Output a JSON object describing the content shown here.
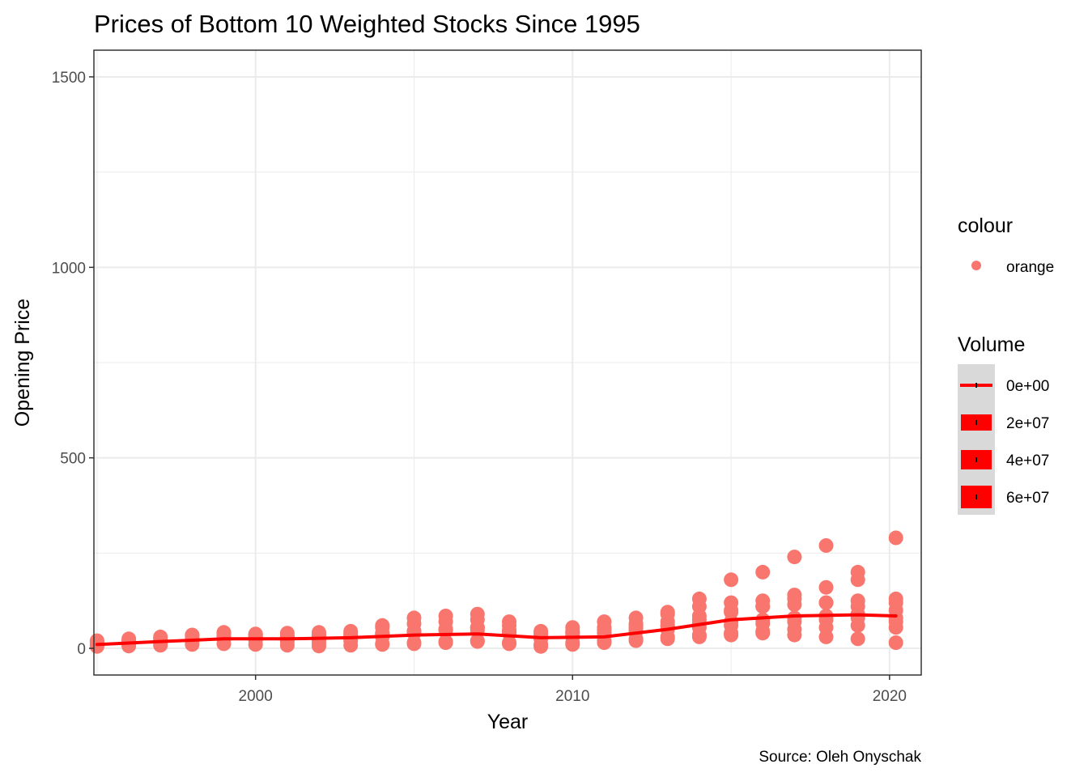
{
  "chart_data": {
    "type": "scatter",
    "title": "Prices of Bottom 10 Weighted Stocks Since 1995",
    "xlabel": "Year",
    "ylabel": "Opening Price",
    "caption": "Source: Oleh Onyschak",
    "xlim": [
      1994.9,
      2021.0
    ],
    "ylim": [
      -70,
      1570
    ],
    "x_ticks": [
      2000,
      2010,
      2020
    ],
    "x_tick_labels": [
      "2000",
      "2010",
      "2020"
    ],
    "y_ticks": [
      0,
      500,
      1000,
      1500
    ],
    "y_tick_labels": [
      "0",
      "500",
      "1000",
      "1500"
    ],
    "grid": true,
    "legend_position": "right",
    "colors": {
      "points": "#F8766D",
      "trend": "#FF0000",
      "grid": "#EBEBEB",
      "legend_key_bg": "#D9D9D9"
    },
    "legends": [
      {
        "title": "colour",
        "entries": [
          {
            "label": "orange",
            "shape": "point",
            "color": "#F8766D"
          }
        ]
      },
      {
        "title": "Volume",
        "entries": [
          {
            "label": "0e+00",
            "size": 1
          },
          {
            "label": "2e+07",
            "size": 2
          },
          {
            "label": "4e+07",
            "size": 3
          },
          {
            "label": "6e+07",
            "size": 4
          }
        ]
      }
    ],
    "series": [
      {
        "x": [
          1995.0,
          1996.0,
          1997.0,
          1998.0,
          1999.0,
          2000.0,
          2001.0,
          2002.0,
          2003.0,
          2004.0,
          2005.0,
          2006.0,
          2007.0,
          2008.0,
          2009.0,
          2010.0,
          2011.0,
          2012.0,
          2013.0,
          2014.0,
          2015.0,
          2016.0,
          2017.0,
          2018.0,
          2019.0,
          2020.2
        ],
        "y": [
          18,
          22,
          28,
          35,
          42,
          38,
          33,
          35,
          40,
          55,
          65,
          70,
          75,
          60,
          40,
          45,
          55,
          60,
          70,
          85,
          100,
          110,
          115,
          120,
          125,
          130
        ]
      },
      {
        "x": [
          1995.0,
          1996.0,
          1997.0,
          1998.0,
          1999.0,
          2000.0,
          2001.0,
          2002.0,
          2003.0,
          2004.0,
          2005.0,
          2006.0,
          2007.0,
          2008.0,
          2009.0,
          2010.0,
          2011.0,
          2012.0,
          2013.0,
          2014.0,
          2015.0,
          2016.0,
          2017.0,
          2018.0,
          2019.0,
          2020.2
        ],
        "y": [
          12,
          15,
          20,
          25,
          30,
          28,
          25,
          22,
          28,
          35,
          45,
          50,
          55,
          45,
          30,
          40,
          50,
          65,
          90,
          130,
          180,
          200,
          240,
          270,
          200,
          120
        ]
      },
      {
        "x": [
          1995.0,
          1996.0,
          1997.0,
          1998.0,
          1999.0,
          2000.0,
          2001.0,
          2002.0,
          2003.0,
          2004.0,
          2005.0,
          2006.0,
          2007.0,
          2008.0,
          2009.0,
          2010.0,
          2011.0,
          2012.0,
          2013.0,
          2014.0,
          2015.0,
          2016.0,
          2017.0,
          2018.0,
          2019.0,
          2020.2
        ],
        "y": [
          8,
          10,
          14,
          18,
          24,
          22,
          18,
          15,
          20,
          30,
          40,
          48,
          55,
          40,
          25,
          30,
          40,
          50,
          60,
          75,
          95,
          110,
          140,
          160,
          180,
          290
        ]
      },
      {
        "x": [
          1995.0,
          1996.0,
          1997.0,
          1998.0,
          1999.0,
          2000.0,
          2001.0,
          2002.0,
          2003.0,
          2004.0,
          2005.0,
          2006.0,
          2007.0,
          2008.0,
          2009.0,
          2010.0,
          2011.0,
          2012.0,
          2013.0,
          2014.0,
          2015.0,
          2016.0,
          2017.0,
          2018.0,
          2019.0,
          2020.2
        ],
        "y": [
          15,
          18,
          22,
          28,
          32,
          30,
          30,
          32,
          35,
          40,
          45,
          50,
          55,
          48,
          38,
          42,
          48,
          55,
          60,
          65,
          70,
          75,
          80,
          85,
          90,
          80
        ]
      },
      {
        "x": [
          1995.0,
          1996.0,
          1997.0,
          1998.0,
          1999.0,
          2000.0,
          2001.0,
          2002.0,
          2003.0,
          2004.0,
          2005.0,
          2006.0,
          2007.0,
          2008.0,
          2009.0,
          2010.0,
          2011.0,
          2012.0,
          2013.0,
          2014.0,
          2015.0,
          2016.0,
          2017.0,
          2018.0,
          2019.0,
          2020.2
        ],
        "y": [
          5,
          6,
          8,
          10,
          12,
          10,
          8,
          6,
          8,
          12,
          15,
          18,
          20,
          15,
          10,
          15,
          20,
          25,
          30,
          35,
          40,
          45,
          50,
          55,
          60,
          55
        ]
      },
      {
        "x": [
          2004.0,
          2005.0,
          2006.0,
          2007.0,
          2008.0,
          2009.0,
          2010.0,
          2011.0,
          2012.0,
          2013.0,
          2014.0,
          2015.0,
          2016.0,
          2017.0,
          2018.0,
          2019.0,
          2020.2
        ],
        "y": [
          10,
          12,
          15,
          18,
          12,
          5,
          10,
          15,
          20,
          25,
          30,
          35,
          40,
          35,
          30,
          25,
          15
        ]
      },
      {
        "x": [
          2000.0,
          2001.0,
          2002.0,
          2003.0,
          2004.0,
          2005.0,
          2006.0,
          2007.0,
          2008.0,
          2009.0,
          2010.0,
          2011.0,
          2012.0,
          2013.0,
          2014.0,
          2015.0,
          2016.0,
          2017.0,
          2018.0,
          2019.0,
          2020.2
        ],
        "y": [
          35,
          40,
          42,
          45,
          60,
          80,
          85,
          90,
          70,
          45,
          55,
          70,
          80,
          95,
          110,
          120,
          125,
          130,
          120,
          110,
          100
        ]
      },
      {
        "x": [
          1995.0,
          1996.0,
          1997.0,
          1998.0,
          1999.0,
          2000.0,
          2001.0,
          2002.0,
          2003.0,
          2004.0,
          2005.0,
          2006.0,
          2007.0,
          2008.0,
          2009.0,
          2010.0,
          2011.0,
          2012.0,
          2013.0,
          2014.0,
          2015.0,
          2016.0,
          2017.0,
          2018.0,
          2019.0,
          2020.2
        ],
        "y": [
          20,
          25,
          30,
          35,
          40,
          35,
          30,
          28,
          32,
          38,
          45,
          50,
          48,
          40,
          30,
          35,
          40,
          45,
          50,
          55,
          60,
          65,
          70,
          75,
          80,
          70
        ]
      }
    ],
    "trend": {
      "x": [
        1995.0,
        1997.0,
        1999.0,
        2001.0,
        2003.0,
        2005.0,
        2007.0,
        2009.0,
        2011.0,
        2013.0,
        2015.0,
        2017.0,
        2019.0,
        2020.2
      ],
      "y": [
        10,
        18,
        25,
        25,
        28,
        35,
        38,
        28,
        30,
        50,
        75,
        85,
        88,
        85
      ]
    }
  }
}
